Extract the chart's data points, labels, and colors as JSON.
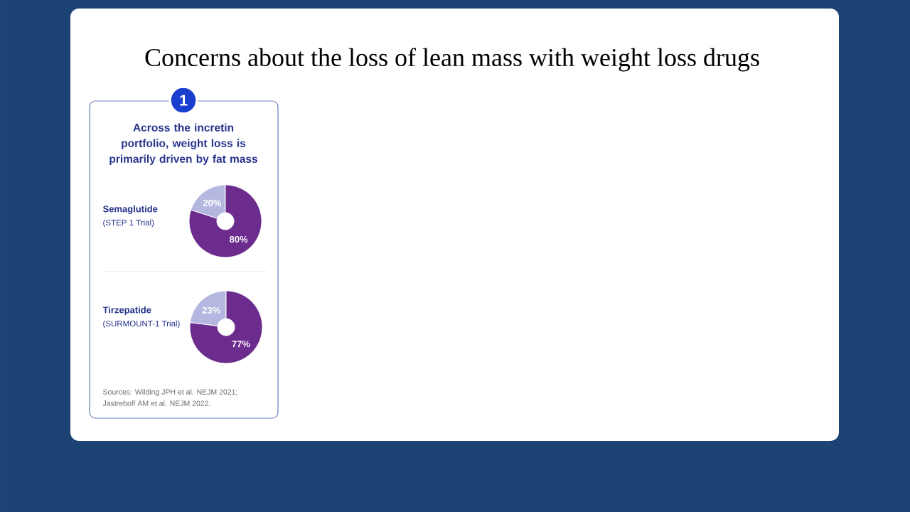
{
  "chart_data": [
    {
      "type": "donut",
      "title": "Semaglutide",
      "subtitle": "(STEP 1 Trial)",
      "categories": [
        null,
        null
      ],
      "values": [
        20,
        80
      ],
      "colors": [
        "#b4b8e0",
        "#6b2c8e"
      ],
      "value_labels": [
        "20%",
        "80%"
      ],
      "annotations": [
        "Concerns about the loss of lean mass with weight loss drugs",
        "1",
        "Across the incretin portfolio, weight loss is primarily driven by fat mass"
      ]
    },
    {
      "type": "donut",
      "title": "Tirzepatide",
      "subtitle": "(SURMOUNT-1 Trial)",
      "categories": [
        null,
        null
      ],
      "values": [
        23,
        77
      ],
      "colors": [
        "#b4b8e0",
        "#6b2c8e"
      ],
      "value_labels": [
        "23%",
        "77%"
      ],
      "annotations": [
        "Sources: Wilding JPH et al. NEJM 2021;",
        "Jastreboff AM et al. NEJM 2022."
      ]
    }
  ]
}
